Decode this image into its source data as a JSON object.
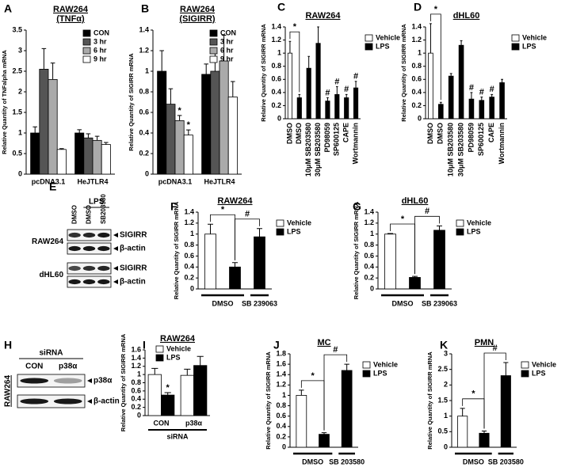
{
  "chart_data": [
    {
      "type": "bar",
      "panel": "A",
      "title": "RAW264",
      "subtitle": "(TNFα)",
      "y_label": "Relative Quantity of TNFalpha mRNA",
      "categories": [
        "pcDNA3.1",
        "HeJTLR4"
      ],
      "series": [
        {
          "name": "CON",
          "color": "#000000",
          "values": [
            1.0,
            1.0
          ],
          "errors": [
            0.15,
            0.08
          ]
        },
        {
          "name": "3 hr",
          "color": "#555555",
          "values": [
            2.55,
            0.88
          ],
          "errors": [
            0.5,
            0.1
          ]
        },
        {
          "name": "6 hr",
          "color": "#aaaaaa",
          "values": [
            2.3,
            0.82
          ],
          "errors": [
            0.4,
            0.1
          ]
        },
        {
          "name": "9 hr",
          "color": "#ffffff",
          "values": [
            0.6,
            0.72
          ],
          "errors": [
            0.02,
            0.05
          ]
        }
      ],
      "ylim": [
        0,
        3.5
      ],
      "yticks": [
        0,
        0.5,
        1,
        1.5,
        2,
        2.5,
        3,
        3.5
      ],
      "legend": "upper right",
      "annotations": []
    },
    {
      "type": "bar",
      "panel": "B",
      "title": "RAW264",
      "subtitle": "(SIGIRR)",
      "y_label": "Relative Quantity of SIGIRR mRNA",
      "categories": [
        "pcDNA3.1",
        "HeJTLR4"
      ],
      "series": [
        {
          "name": "CON",
          "color": "#000000",
          "values": [
            1.0,
            0.97
          ],
          "errors": [
            0.2,
            0.1
          ]
        },
        {
          "name": "3 hr",
          "color": "#555555",
          "values": [
            0.68,
            1.0
          ],
          "errors": [
            0.15,
            0.2
          ]
        },
        {
          "name": "6 hr",
          "color": "#aaaaaa",
          "values": [
            0.52,
            1.1
          ],
          "errors": [
            0.05,
            0.25
          ]
        },
        {
          "name": "9 hr",
          "color": "#ffffff",
          "values": [
            0.38,
            0.75
          ],
          "errors": [
            0.05,
            0.15
          ]
        }
      ],
      "ylim": [
        0,
        1.4
      ],
      "yticks": [
        0,
        0.2,
        0.4,
        0.6,
        0.8,
        1,
        1.2,
        1.4
      ],
      "legend": "upper right",
      "annotations": [
        "*",
        "*"
      ]
    },
    {
      "type": "bar",
      "panel": "C",
      "title": "RAW264",
      "y_label": "Relative Quantity of SIGIRR mRNA",
      "categories": [
        "DMSO",
        "DMSO",
        "10μM SB203580",
        "30μM SB203580",
        "PD98059",
        "SP600125",
        "CAPE",
        "Wortmannin"
      ],
      "series": [
        {
          "name": "Vehicle",
          "color": "#ffffff",
          "values": [
            1.0,
            null,
            null,
            null,
            null,
            null,
            null,
            null
          ],
          "errors": [
            0.18,
            null,
            null,
            null,
            null,
            null,
            null,
            null
          ]
        },
        {
          "name": "LPS",
          "color": "#000000",
          "values": [
            null,
            0.32,
            0.77,
            1.15,
            0.27,
            0.37,
            0.32,
            0.47
          ],
          "errors": [
            null,
            0.05,
            0.18,
            0.25,
            0.05,
            0.12,
            0.05,
            0.1
          ]
        }
      ],
      "ylim": [
        0,
        1.4
      ],
      "yticks": [
        0,
        0.2,
        0.4,
        0.6,
        0.8,
        1,
        1.2,
        1.4
      ],
      "legend": "right",
      "annotations": [
        "*",
        "#",
        "#",
        "#",
        "#"
      ]
    },
    {
      "type": "bar",
      "panel": "D",
      "title": "dHL60",
      "y_label": "Relative Quantity of SIGIRR mRNA",
      "categories": [
        "DMSO",
        "DMSO",
        "10μM SB203580",
        "30μM SB203580",
        "PD98059",
        "SP600125",
        "CAPE",
        "Wortmannin"
      ],
      "series": [
        {
          "name": "Vehicle",
          "color": "#ffffff",
          "values": [
            1.0,
            null,
            null,
            null,
            null,
            null,
            null,
            null
          ],
          "errors": [
            0.45,
            null,
            null,
            null,
            null,
            null,
            null,
            null
          ]
        },
        {
          "name": "LPS",
          "color": "#000000",
          "values": [
            null,
            0.22,
            0.65,
            1.12,
            0.3,
            0.28,
            0.33,
            0.55
          ],
          "errors": [
            null,
            0.03,
            0.04,
            0.07,
            0.1,
            0.05,
            0.04,
            0.05
          ]
        }
      ],
      "ylim": [
        0,
        1.4
      ],
      "yticks": [
        0,
        0.2,
        0.4,
        0.6,
        0.8,
        1,
        1.2,
        1.4
      ],
      "legend": "right",
      "annotations": [
        "*",
        "#",
        "#",
        "#"
      ]
    },
    {
      "type": "blot",
      "panel": "E",
      "treatment": "LPS",
      "lanes": [
        "DMSO",
        "DMSO",
        "SB203580"
      ],
      "rows": [
        {
          "cell": "RAW264",
          "bands": [
            "SIGIRR",
            "β-actin"
          ]
        },
        {
          "cell": "dHL60",
          "bands": [
            "SIGIRR",
            "β-actin"
          ]
        }
      ]
    },
    {
      "type": "bar",
      "panel": "F",
      "title": "RAW264",
      "y_label": "Relative Quantity of SIGIRR mRNA",
      "categories": [
        null,
        null,
        null
      ],
      "x_groups": [
        "DMSO",
        "SB 239063"
      ],
      "series": [
        {
          "name": "Vehicle",
          "color": "#ffffff",
          "values": [
            1.0,
            null,
            null
          ],
          "errors": [
            0.18,
            null,
            null
          ]
        },
        {
          "name": "LPS",
          "color": "#000000",
          "values": [
            null,
            0.4,
            0.95
          ],
          "errors": [
            null,
            0.08,
            0.15
          ]
        }
      ],
      "ylim": [
        0,
        1.4
      ],
      "yticks": [
        0,
        0.2,
        0.4,
        0.6,
        0.8,
        1,
        1.2,
        1.4
      ],
      "legend": "right",
      "annotations": [
        "*",
        "#"
      ]
    },
    {
      "type": "bar",
      "panel": "G",
      "title": "dHL60",
      "y_label": "Relative Quantity of SIGIRR mRNA",
      "categories": [
        null,
        null,
        null
      ],
      "x_groups": [
        "DMSO",
        "SB 239063"
      ],
      "series": [
        {
          "name": "Vehicle",
          "color": "#ffffff",
          "values": [
            1.0,
            null,
            null
          ],
          "errors": [
            0.01,
            null,
            null
          ]
        },
        {
          "name": "LPS",
          "color": "#000000",
          "values": [
            null,
            0.21,
            1.07
          ],
          "errors": [
            null,
            0.02,
            0.08
          ]
        }
      ],
      "ylim": [
        0,
        1.4
      ],
      "yticks": [
        0,
        0.2,
        0.4,
        0.6,
        0.8,
        1,
        1.2,
        1.4
      ],
      "legend": "right",
      "annotations": [
        "*",
        "#"
      ]
    },
    {
      "type": "blot",
      "panel": "H",
      "treatment": "siRNA",
      "lanes": [
        "CON",
        "p38α"
      ],
      "rows": [
        {
          "cell": "RAW264",
          "bands": [
            "p38α",
            "β-actin"
          ]
        }
      ]
    },
    {
      "type": "bar",
      "panel": "I",
      "title": "RAW264",
      "y_label": "Relative Quantity of SIGIRR mRNA",
      "x_label": "siRNA",
      "categories": [
        "CON",
        "p38α"
      ],
      "series": [
        {
          "name": "Vehicle",
          "color": "#ffffff",
          "values": [
            1.0,
            0.98
          ],
          "errors": [
            0.15,
            0.15
          ]
        },
        {
          "name": "LPS",
          "color": "#000000",
          "values": [
            0.5,
            1.22
          ],
          "errors": [
            0.06,
            0.22
          ]
        }
      ],
      "ylim": [
        0,
        1.6
      ],
      "yticks": [
        0,
        0.2,
        0.4,
        0.6,
        0.8,
        1,
        1.2,
        1.4,
        1.6
      ],
      "legend": "upper left",
      "annotations": [
        "*"
      ]
    },
    {
      "type": "bar",
      "panel": "J",
      "title": "MC",
      "y_label": "Relative Quantity of SIGIRR mRNA",
      "categories": [
        null,
        null,
        null
      ],
      "x_groups": [
        "DMSO",
        "SB 203580"
      ],
      "series": [
        {
          "name": "Vehicle",
          "color": "#ffffff",
          "values": [
            1.0,
            null,
            null
          ],
          "errors": [
            0.1,
            null,
            null
          ]
        },
        {
          "name": "LPS",
          "color": "#000000",
          "values": [
            null,
            0.25,
            1.48
          ],
          "errors": [
            null,
            0.03,
            0.12
          ]
        }
      ],
      "ylim": [
        0,
        1.8
      ],
      "yticks": [
        0,
        0.2,
        0.4,
        0.6,
        0.8,
        1,
        1.2,
        1.4,
        1.6,
        1.8
      ],
      "legend": "right",
      "annotations": [
        "*",
        "#"
      ]
    },
    {
      "type": "bar",
      "panel": "K",
      "title": "PMN",
      "y_label": "Relative Quantity of SIGIRR mRNA",
      "categories": [
        null,
        null,
        null
      ],
      "x_groups": [
        "DMSO",
        "SB 203580"
      ],
      "series": [
        {
          "name": "Vehicle",
          "color": "#ffffff",
          "values": [
            1.0,
            null,
            null
          ],
          "errors": [
            0.25,
            null,
            null
          ]
        },
        {
          "name": "LPS",
          "color": "#000000",
          "values": [
            null,
            0.45,
            2.3
          ],
          "errors": [
            null,
            0.07,
            0.42
          ]
        }
      ],
      "ylim": [
        0,
        3
      ],
      "yticks": [
        0,
        0.5,
        1,
        1.5,
        2,
        2.5,
        3
      ],
      "legend": "right",
      "annotations": [
        "*",
        "#"
      ]
    }
  ]
}
